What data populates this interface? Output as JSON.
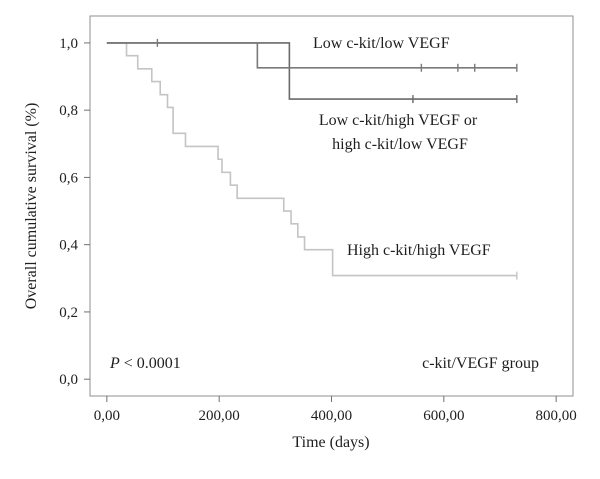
{
  "chart_data": {
    "type": "line",
    "step": true,
    "xlabel": "Time (days)",
    "ylabel": "Overall cumulative survival (%)",
    "xlim": [
      -30,
      830
    ],
    "ylim": [
      -0.05,
      1.08
    ],
    "x_ticks": [
      0,
      200,
      400,
      600,
      800
    ],
    "x_tick_labels": [
      "0,00",
      "200,00",
      "400,00",
      "600,00",
      "800,00"
    ],
    "y_ticks": [
      0.0,
      0.2,
      0.4,
      0.6,
      0.8,
      1.0
    ],
    "y_tick_labels": [
      "0,0",
      "0,2",
      "0,4",
      "0,6",
      "0,8",
      "1,0"
    ],
    "grid": false,
    "series": [
      {
        "label_lines": [
          "Low c-kit/low VEGF"
        ],
        "color": "#7a7a7a",
        "steps": [
          [
            0,
            1.0
          ],
          [
            268,
            0.926
          ],
          [
            730,
            0.926
          ]
        ],
        "censor": [
          [
            90,
            1.0
          ],
          [
            560,
            0.926
          ],
          [
            625,
            0.926
          ],
          [
            655,
            0.926
          ],
          [
            730,
            0.926
          ]
        ]
      },
      {
        "label_lines": [
          "Low c-kit/high VEGF or",
          "high c-kit/low VEGF"
        ],
        "color": "#6a6a6a",
        "steps": [
          [
            0,
            1.0
          ],
          [
            325,
            0.833
          ],
          [
            730,
            0.833
          ]
        ],
        "censor": [
          [
            545,
            0.833
          ],
          [
            730,
            0.833
          ]
        ]
      },
      {
        "label_lines": [
          "High c-kit/high VEGF"
        ],
        "color": "#c4c4c4",
        "steps": [
          [
            0,
            1.0
          ],
          [
            35,
            0.962
          ],
          [
            55,
            0.923
          ],
          [
            80,
            0.885
          ],
          [
            95,
            0.846
          ],
          [
            108,
            0.808
          ],
          [
            118,
            0.731
          ],
          [
            140,
            0.692
          ],
          [
            198,
            0.654
          ],
          [
            205,
            0.615
          ],
          [
            220,
            0.577
          ],
          [
            232,
            0.538
          ],
          [
            315,
            0.5
          ],
          [
            328,
            0.462
          ],
          [
            340,
            0.423
          ],
          [
            352,
            0.385
          ],
          [
            402,
            0.308
          ],
          [
            730,
            0.308
          ]
        ],
        "censor": [
          [
            730,
            0.308
          ]
        ]
      }
    ],
    "annotations": {
      "p_symbol": "P",
      "p_rest": " < 0.0001",
      "group_label": "c-kit/VEGF group"
    }
  }
}
